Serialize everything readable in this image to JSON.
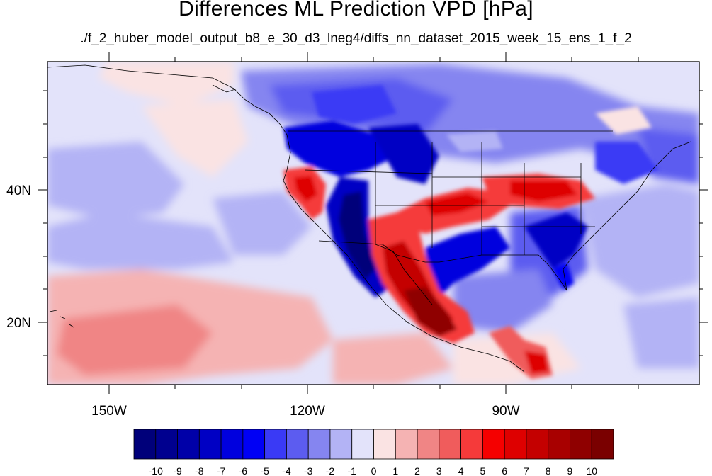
{
  "title": "Differences ML Prediction VPD [hPa]",
  "subtitle": "./f_2_huber_model_output_b8_e_30_d3_lneg4/diffs_nn_dataset_2015_week_15_ens_1_f_2",
  "lon_labels": [
    "150W",
    "120W",
    "90W"
  ],
  "lat_labels": [
    "40N",
    "20N"
  ],
  "colorbar": {
    "labels": [
      "-10",
      "-9",
      "-8",
      "-7",
      "-6",
      "-5",
      "-4",
      "-3",
      "-2",
      "-1",
      "0",
      "1",
      "2",
      "3",
      "4",
      "5",
      "6",
      "7",
      "8",
      "9",
      "10"
    ],
    "colors": [
      "#00007a",
      "#00008f",
      "#0000a8",
      "#0000c4",
      "#0000de",
      "#0000f5",
      "#3a3af5",
      "#5c5cf0",
      "#8585f0",
      "#b3b3f5",
      "#e3e3fa",
      "#fae3e3",
      "#f5b3b3",
      "#f08585",
      "#f05c5c",
      "#f53a3a",
      "#f50000",
      "#de0000",
      "#c40000",
      "#a80000",
      "#8f0000",
      "#7a0000"
    ]
  }
}
